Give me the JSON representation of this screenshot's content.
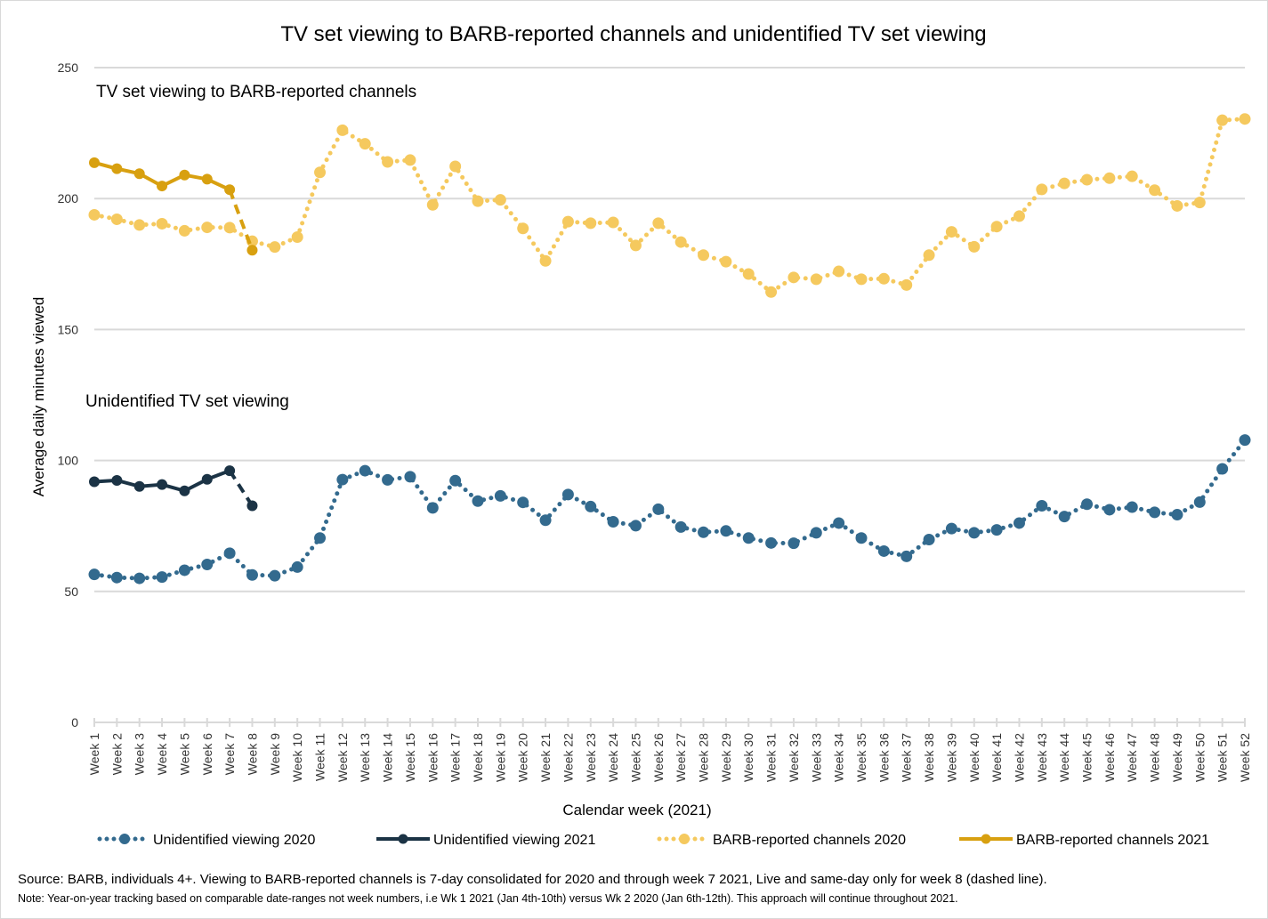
{
  "chart_data": {
    "type": "line",
    "title": "TV set viewing to BARB-reported channels and unidentified TV set viewing",
    "xlabel": "Calendar week (2021)",
    "ylabel": "Average daily minutes viewed",
    "ylim": [
      0,
      250
    ],
    "yticks": [
      0,
      50,
      100,
      150,
      200,
      250
    ],
    "grid": true,
    "legend_position": "bottom",
    "categories": [
      "Week 1",
      "Week 2",
      "Week 3",
      "Week 4",
      "Week 5",
      "Week 6",
      "Week 7",
      "Week 8",
      "Week 9",
      "Week 10",
      "Week 11",
      "Week 12",
      "Week 13",
      "Week 14",
      "Week 15",
      "Week 16",
      "Week 17",
      "Week 18",
      "Week 19",
      "Week 20",
      "Week 21",
      "Week 22",
      "Week 23",
      "Week 24",
      "Week 25",
      "Week 26",
      "Week 27",
      "Week 28",
      "Week 29",
      "Week 30",
      "Week 31",
      "Week 32",
      "Week 33",
      "Week 34",
      "Week 35",
      "Week 36",
      "Week 37",
      "Week 38",
      "Week 39",
      "Week 40",
      "Week 41",
      "Week 42",
      "Week 43",
      "Week 44",
      "Week 45",
      "Week 46",
      "Week 47",
      "Week 48",
      "Week 49",
      "Week 50",
      "Week 51",
      "Week 52"
    ],
    "annotations": [
      {
        "text": "TV set viewing to BARB-reported channels",
        "near_value": 243
      },
      {
        "text": "Unidentified TV set viewing",
        "near_value": 125
      }
    ],
    "series": [
      {
        "name": "Unidentified viewing 2020",
        "style": "dotted",
        "color": "#336a8e",
        "values": [
          56.5,
          55.3,
          55,
          55.5,
          58.1,
          60.3,
          64.6,
          56.3,
          56,
          59.3,
          70.4,
          92.7,
          96.1,
          92.6,
          93.8,
          81.9,
          92.3,
          84.5,
          86.5,
          84,
          77.2,
          87,
          82.4,
          76.6,
          75.1,
          81.4,
          74.6,
          72.6,
          73.1,
          70.4,
          68.5,
          68.4,
          72.4,
          76.1,
          70.4,
          65.4,
          63.4,
          69.8,
          74,
          72.4,
          73.5,
          76.1,
          82.7,
          78.6,
          83.3,
          81.2,
          82.2,
          80.2,
          79.3,
          84.1,
          96.8,
          107.8
        ]
      },
      {
        "name": "Unidentified viewing 2021",
        "style": "solid",
        "color": "#1b3345",
        "values": [
          91.9,
          92.4,
          90.1,
          90.8,
          88.4,
          92.8,
          96.1,
          82.7
        ],
        "dashed_from_index": 6
      },
      {
        "name": "BARB-reported channels 2020",
        "style": "dotted",
        "color": "#f5c95e",
        "values": [
          193.8,
          192.1,
          189.9,
          190.4,
          187.7,
          189,
          188.9,
          183.7,
          181.5,
          185.3,
          210,
          226.1,
          220.9,
          214,
          214.7,
          197.6,
          212.3,
          199,
          199.5,
          188.6,
          176.2,
          191.2,
          190.6,
          190.9,
          182.1,
          190.6,
          183.4,
          178.4,
          175.9,
          171.2,
          164.3,
          169.9,
          169.2,
          172.2,
          169.2,
          169.4,
          167,
          178.4,
          187.3,
          181.6,
          189.3,
          193.3,
          203.5,
          205.8,
          207.2,
          207.8,
          208.5,
          203.2,
          197.2,
          198.5,
          229.9,
          230.4
        ]
      },
      {
        "name": "BARB-reported channels 2021",
        "style": "solid",
        "color": "#d8a010",
        "values": [
          213.7,
          211.4,
          209.5,
          204.8,
          209,
          207.4,
          203.4,
          180.3
        ],
        "dashed_from_index": 6
      }
    ]
  },
  "footer": {
    "source": "Source: BARB, individuals 4+. Viewing to BARB-reported channels is 7-day consolidated for 2020 and through week 7 2021, Live and same-day only for week 8 (dashed line).",
    "note": "Note: Year-on-year tracking based on comparable date-ranges not week numbers, i.e Wk 1 2021 (Jan 4th-10th) versus Wk 2 2020 (Jan 6th-12th). This approach will continue throughout 2021."
  }
}
